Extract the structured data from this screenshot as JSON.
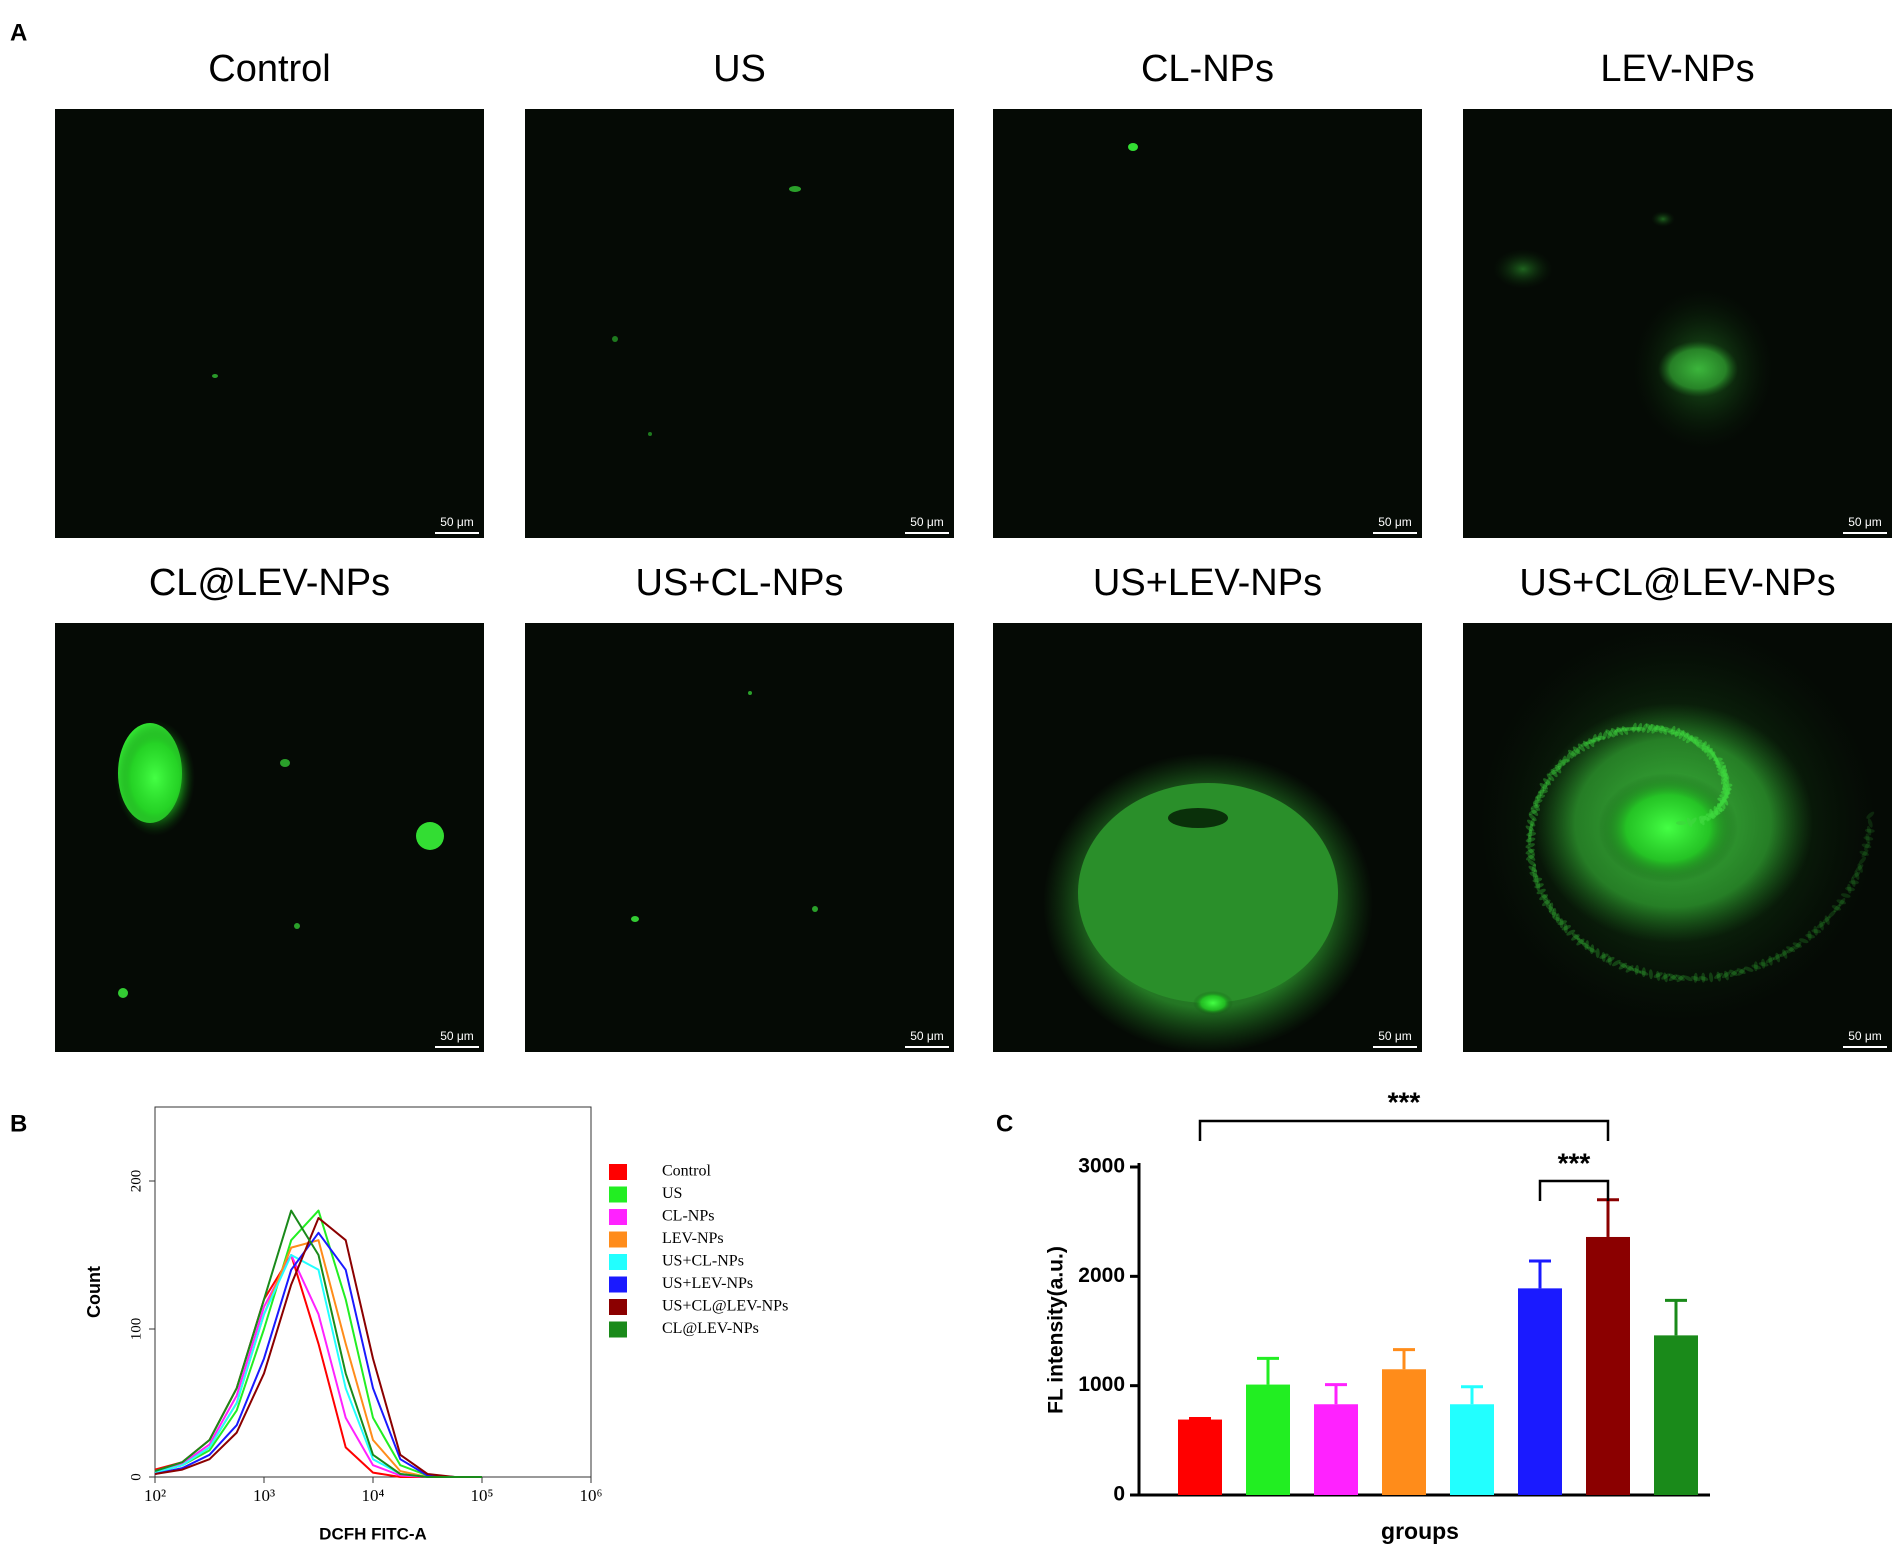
{
  "panel_labels": [
    "A",
    "B",
    "C"
  ],
  "micrographs": {
    "titles": [
      "Control",
      "US",
      "CL-NPs",
      "LEV-NPs",
      "CL@LEV-NPs",
      "US+CL-NPs",
      "US+LEV-NPs",
      "US+CL@LEV-NPs"
    ],
    "scale_bar": "50 μm"
  },
  "chart_data": [
    {
      "type": "line",
      "xlabel": "DCFH FITC-A",
      "ylabel": "Count",
      "xscale": "log",
      "xlim": [
        100,
        1000000
      ],
      "ylim": [
        0,
        250
      ],
      "xticks": [
        {
          "value": 100,
          "label": "10²"
        },
        {
          "value": 1000,
          "label": "10³"
        },
        {
          "value": 10000,
          "label": "10⁴"
        },
        {
          "value": 100000,
          "label": "10⁵"
        },
        {
          "value": 1000000,
          "label": "10⁶"
        }
      ],
      "yticks": [
        0,
        100,
        200
      ],
      "x": [
        100,
        178,
        316,
        562,
        1000,
        1778,
        3162,
        5623,
        10000,
        17783,
        31623,
        56234,
        100000
      ],
      "series": [
        {
          "name": "Control",
          "color": "#ff0000",
          "values": [
            5,
            10,
            25,
            60,
            120,
            150,
            90,
            20,
            3,
            0,
            0,
            0,
            0
          ]
        },
        {
          "name": "US",
          "color": "#22ee22",
          "values": [
            3,
            8,
            18,
            45,
            100,
            160,
            180,
            120,
            40,
            8,
            1,
            0,
            0
          ]
        },
        {
          "name": "CL-NPs",
          "color": "#ff22ff",
          "values": [
            4,
            9,
            22,
            55,
            115,
            150,
            110,
            40,
            8,
            1,
            0,
            0,
            0
          ]
        },
        {
          "name": "LEV-NPs",
          "color": "#ff8c1a",
          "values": [
            3,
            8,
            20,
            50,
            110,
            155,
            160,
            90,
            25,
            4,
            0,
            0,
            0
          ]
        },
        {
          "name": "US+CL-NPs",
          "color": "#22ffff",
          "values": [
            3,
            8,
            20,
            50,
            110,
            150,
            140,
            60,
            12,
            2,
            0,
            0,
            0
          ]
        },
        {
          "name": "US+LEV-NPs",
          "color": "#1a1aff",
          "values": [
            2,
            6,
            15,
            35,
            80,
            140,
            165,
            140,
            60,
            12,
            1,
            0,
            0
          ]
        },
        {
          "name": "US+CL@LEV-NPs",
          "color": "#8b0000",
          "values": [
            2,
            5,
            12,
            30,
            70,
            130,
            175,
            160,
            80,
            15,
            2,
            0,
            0
          ]
        },
        {
          "name": "CL@LEV-NPs",
          "color": "#1a8a1a",
          "values": [
            4,
            10,
            25,
            60,
            120,
            180,
            150,
            70,
            15,
            2,
            0,
            0,
            0
          ]
        }
      ]
    },
    {
      "type": "bar",
      "xlabel": "groups",
      "ylabel": "FL intensity(a.u.)",
      "ylim": [
        0,
        3000
      ],
      "yticks": [
        0,
        1000,
        2000,
        3000
      ],
      "categories": [
        null,
        null,
        null,
        null,
        null,
        null,
        null,
        null
      ],
      "values": [
        690,
        1010,
        830,
        1150,
        830,
        1890,
        2360,
        1460
      ],
      "errors": [
        10,
        240,
        180,
        180,
        160,
        250,
        340,
        320
      ],
      "colors": [
        "#ff0000",
        "#22ee22",
        "#ff22ff",
        "#ff8c1a",
        "#22ffff",
        "#1a1aff",
        "#8b0000",
        "#1a8a1a"
      ],
      "annotations": [
        "***",
        "***"
      ]
    }
  ]
}
